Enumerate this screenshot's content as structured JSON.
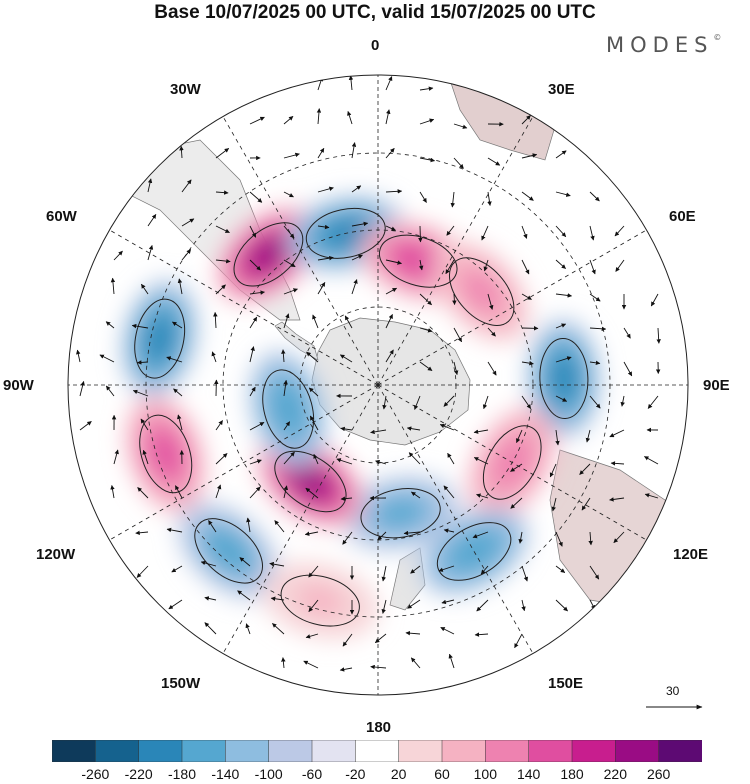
{
  "title": "Base 10/07/2025 00 UTC, valid 15/07/2025 00 UTC",
  "brand": {
    "name": "MODES",
    "mark": "©"
  },
  "longitude_labels": [
    {
      "id": "0",
      "text": "0"
    },
    {
      "id": "30e",
      "text": "30E"
    },
    {
      "id": "60e",
      "text": "60E"
    },
    {
      "id": "90e",
      "text": "90E"
    },
    {
      "id": "120e",
      "text": "120E"
    },
    {
      "id": "150e",
      "text": "150E"
    },
    {
      "id": "180",
      "text": "180"
    },
    {
      "id": "150w",
      "text": "150W"
    },
    {
      "id": "120w",
      "text": "120W"
    },
    {
      "id": "90w",
      "text": "90W"
    },
    {
      "id": "60w",
      "text": "60W"
    },
    {
      "id": "30w",
      "text": "30W"
    }
  ],
  "vector_scale": {
    "value": "30"
  },
  "colorbar": {
    "ticks": [
      "-260",
      "-220",
      "-180",
      "-140",
      "-100",
      "-60",
      "-20",
      "20",
      "60",
      "100",
      "140",
      "180",
      "220",
      "260"
    ],
    "colors": [
      "#0e3a5b",
      "#15628e",
      "#2a86b8",
      "#55a7d0",
      "#8ebde0",
      "#bcc9e6",
      "#e3e3f1",
      "#ffffff",
      "#f7d5d8",
      "#f5b2c2",
      "#ee82b0",
      "#e04ea0",
      "#c81e8e",
      "#9a0c84",
      "#5d0a73"
    ]
  },
  "chart_data": {
    "type": "heatmap",
    "projection": "south-polar-stereographic",
    "field": "anomaly with wind vectors",
    "colorbar_range": [
      -260,
      260
    ],
    "anomalies": [
      {
        "id": "a1",
        "lon": -40,
        "colat": 0.55,
        "value": 230
      },
      {
        "id": "a2",
        "lon": -12,
        "colat": 0.5,
        "value": -200
      },
      {
        "id": "a3",
        "lon": 18,
        "colat": 0.42,
        "value": 170
      },
      {
        "id": "a4",
        "lon": 48,
        "colat": 0.45,
        "value": 100
      },
      {
        "id": "a5",
        "lon": 88,
        "colat": 0.6,
        "value": -200
      },
      {
        "id": "a6",
        "lon": 120,
        "colat": 0.5,
        "value": 130
      },
      {
        "id": "a7",
        "lon": 150,
        "colat": 0.62,
        "value": -180
      },
      {
        "id": "a8",
        "lon": 170,
        "colat": 0.42,
        "value": -150
      },
      {
        "id": "a9",
        "lon": -145,
        "colat": 0.38,
        "value": 240
      },
      {
        "id": "a10",
        "lon": -105,
        "colat": 0.3,
        "value": -180
      },
      {
        "id": "a11",
        "lon": -78,
        "colat": 0.72,
        "value": -200
      },
      {
        "id": "a12",
        "lon": -108,
        "colat": 0.72,
        "value": 150
      },
      {
        "id": "a13",
        "lon": -138,
        "colat": 0.72,
        "value": -160
      },
      {
        "id": "a14",
        "lon": -165,
        "colat": 0.72,
        "value": 60
      }
    ]
  }
}
